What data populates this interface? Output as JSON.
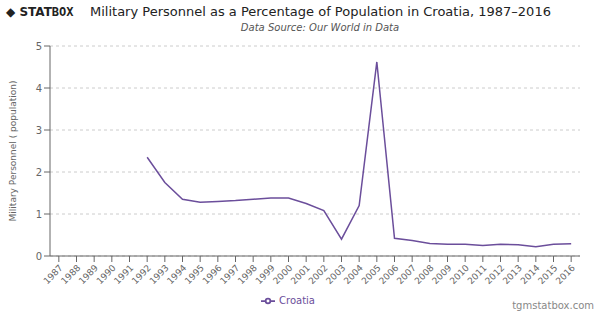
{
  "chart_data": {
    "type": "line",
    "title": "Military Personnel as a Percentage of Population in Croatia, 1987–2016",
    "subtitle": "Data Source: Our World in Data",
    "ylabel": "Military Personnel ( population)",
    "annotations": [
      "◆ STAT",
      "BOX",
      "tgmstatbox.com"
    ],
    "x": [
      1987,
      1988,
      1989,
      1990,
      1991,
      1992,
      1993,
      1994,
      1995,
      1996,
      1997,
      1998,
      1999,
      2000,
      2001,
      2002,
      2003,
      2004,
      2005,
      2006,
      2007,
      2008,
      2009,
      2010,
      2011,
      2012,
      2013,
      2014,
      2015,
      2016
    ],
    "series": [
      {
        "name": "Croatia",
        "color": "#6B4E9B",
        "values": [
          null,
          null,
          null,
          null,
          null,
          2.35,
          1.75,
          1.35,
          1.28,
          1.3,
          1.32,
          1.35,
          1.38,
          1.38,
          1.25,
          1.08,
          0.4,
          1.2,
          4.62,
          0.42,
          0.37,
          0.3,
          0.28,
          0.28,
          0.25,
          0.28,
          0.27,
          0.22,
          0.28,
          0.29
        ]
      }
    ],
    "xlim": [
      1986.5,
      2016.5
    ],
    "xticks": [
      1987,
      1988,
      1989,
      1990,
      1991,
      1992,
      1993,
      1994,
      1995,
      1996,
      1997,
      1998,
      1999,
      2000,
      2001,
      2002,
      2003,
      2004,
      2005,
      2006,
      2007,
      2008,
      2009,
      2010,
      2011,
      2012,
      2013,
      2014,
      2015,
      2016
    ],
    "ylim": [
      0,
      5
    ],
    "yticks": [
      0,
      1,
      2,
      3,
      4,
      5
    ],
    "grid": true,
    "legend": "bottom"
  }
}
